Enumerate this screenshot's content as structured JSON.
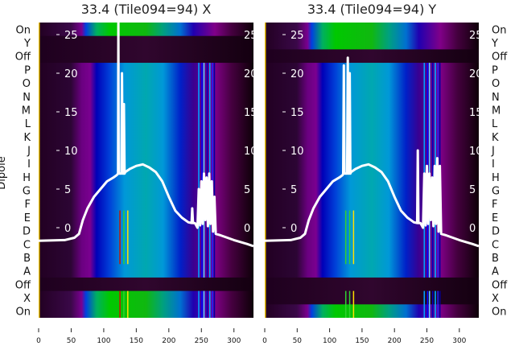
{
  "chart_data": {
    "type": "heatmap",
    "ylabel": "Dipole",
    "row_labels": [
      "On",
      "Y",
      "Off",
      "P",
      "O",
      "N",
      "M",
      "L",
      "K",
      "J",
      "I",
      "H",
      "G",
      "F",
      "E",
      "D",
      "C",
      "B",
      "A",
      "Off",
      "X",
      "On"
    ],
    "xticks": [
      0,
      50,
      100,
      150,
      200,
      250,
      300
    ],
    "xlim": [
      0,
      330
    ],
    "overlay_yticks": [
      0,
      5,
      10,
      15,
      20,
      25
    ],
    "overlay_ylim": [
      -3.5,
      26.5
    ],
    "panels": [
      {
        "title": "33.4 (Tile094=94) X",
        "row_kinds": [
          "on",
          "off",
          "off",
          "body",
          "body",
          "body",
          "body",
          "body",
          "body",
          "body",
          "body",
          "body",
          "body",
          "body",
          "body",
          "body",
          "body",
          "body",
          "body",
          "off",
          "on",
          "on"
        ],
        "overlay_line": {
          "x": [
            0,
            40,
            55,
            62,
            68,
            75,
            85,
            95,
            105,
            115,
            120,
            122,
            122.5,
            123,
            125,
            127,
            128,
            129,
            130,
            131,
            132,
            133,
            140,
            150,
            160,
            170,
            180,
            190,
            200,
            210,
            220,
            230,
            235,
            236,
            237,
            240,
            244,
            246,
            248,
            250,
            252,
            254,
            256,
            258,
            260,
            262,
            264,
            266,
            268,
            270,
            272,
            280,
            300,
            320,
            330
          ],
          "y": [
            -1.7,
            -1.6,
            -1.3,
            -0.8,
            1,
            2.5,
            4,
            5,
            6,
            6.5,
            6.8,
            7,
            27,
            7,
            7,
            7,
            20,
            7,
            7,
            16,
            7,
            7.2,
            7.6,
            8,
            8.2,
            7.8,
            7.2,
            6,
            4,
            2.2,
            1.3,
            0.7,
            0.6,
            2.5,
            0.6,
            0.6,
            0,
            5,
            0.3,
            6,
            0.5,
            7,
            1,
            6.5,
            0.2,
            7,
            0.5,
            6,
            -0.5,
            4,
            -0.8,
            -1,
            -1.6,
            -2.1,
            -2.4
          ]
        },
        "marks": [
          {
            "x": 124,
            "color": "#d01000"
          },
          {
            "x": 130,
            "color": "#30d030"
          },
          {
            "x": 136,
            "color": "#ffe000"
          }
        ]
      },
      {
        "title": "33.4 (Tile094=94) Y",
        "row_kinds": [
          "on",
          "on",
          "off",
          "body",
          "body",
          "body",
          "body",
          "body",
          "body",
          "body",
          "body",
          "body",
          "body",
          "body",
          "body",
          "body",
          "body",
          "body",
          "body",
          "off",
          "off",
          "on"
        ],
        "overlay_line": {
          "x": [
            0,
            40,
            55,
            62,
            68,
            75,
            85,
            95,
            105,
            115,
            120,
            121,
            122,
            123,
            126,
            127,
            128,
            129,
            130,
            131,
            132,
            133,
            140,
            150,
            160,
            170,
            180,
            190,
            200,
            210,
            220,
            230,
            235,
            236,
            237,
            240,
            244,
            246,
            248,
            250,
            252,
            254,
            256,
            258,
            260,
            262,
            264,
            266,
            268,
            270,
            272,
            280,
            300,
            320,
            330
          ],
          "y": [
            -1.7,
            -1.6,
            -1.3,
            -0.8,
            1,
            2.5,
            4,
            5,
            6,
            6.5,
            6.8,
            7,
            21,
            7,
            7,
            7,
            22,
            7,
            7,
            20,
            7,
            7.2,
            7.6,
            8,
            8.2,
            7.8,
            7.2,
            6,
            4,
            2.2,
            1.3,
            0.7,
            0.6,
            10,
            0.6,
            0.6,
            0,
            7,
            0.3,
            8,
            0.5,
            7,
            1,
            6.5,
            0.2,
            8,
            0.5,
            9,
            -0.5,
            8,
            -0.8,
            -1,
            -1.6,
            -2.1,
            -2.4
          ]
        },
        "marks": [
          {
            "x": 124,
            "color": "#30d030"
          },
          {
            "x": 130,
            "color": "#30d030"
          },
          {
            "x": 136,
            "color": "#ffe000"
          }
        ]
      }
    ]
  }
}
